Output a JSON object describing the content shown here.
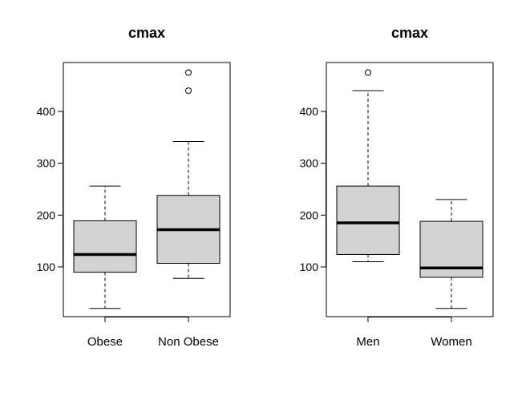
{
  "chart_data": [
    {
      "type": "boxplot",
      "title": "cmax",
      "ylim": [
        0,
        500
      ],
      "yticks": [
        100,
        200,
        300,
        400
      ],
      "categories": [
        "Obese",
        "Non Obese"
      ],
      "boxes": [
        {
          "name": "Obese",
          "whisker_low": 20,
          "q1": 90,
          "median": 124,
          "q3": 189,
          "whisker_high": 256,
          "outliers": []
        },
        {
          "name": "Non Obese",
          "whisker_low": 78,
          "q1": 107,
          "median": 172,
          "q3": 238,
          "whisker_high": 342,
          "outliers": [
            440,
            475
          ]
        }
      ]
    },
    {
      "type": "boxplot",
      "title": "cmax",
      "ylim": [
        0,
        500
      ],
      "yticks": [
        100,
        200,
        300,
        400
      ],
      "categories": [
        "Men",
        "Women"
      ],
      "boxes": [
        {
          "name": "Men",
          "whisker_low": 110,
          "q1": 124,
          "median": 185,
          "q3": 256,
          "whisker_high": 440,
          "outliers": [
            475
          ]
        },
        {
          "name": "Women",
          "whisker_low": 20,
          "q1": 80,
          "median": 98,
          "q3": 188,
          "whisker_high": 230,
          "outliers": []
        }
      ]
    }
  ],
  "colors": {
    "box_fill": "#d3d3d3",
    "stroke": "#000000",
    "background": "#ffffff"
  }
}
